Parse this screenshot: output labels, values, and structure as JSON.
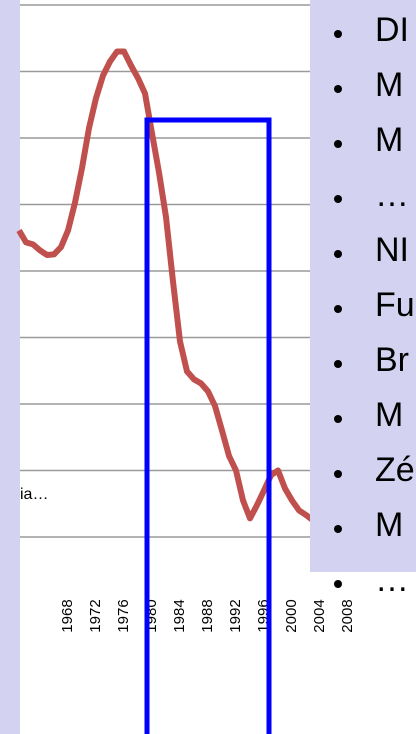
{
  "chart_data": {
    "type": "line",
    "x": [
      1961,
      1962,
      1963,
      1964,
      1965,
      1966,
      1967,
      1968,
      1969,
      1970,
      1971,
      1972,
      1973,
      1974,
      1975,
      1976,
      1977,
      1978,
      1979,
      1980,
      1981,
      1982,
      1983,
      1984,
      1985,
      1986,
      1987,
      1988,
      1989,
      1990,
      1991,
      1992,
      1993,
      1994,
      1995,
      1996,
      1997,
      1998,
      1999,
      2000,
      2001,
      2002,
      2003
    ],
    "series": [
      {
        "name": "ia…",
        "color": "#c0504d",
        "values": [
          4.61,
          4.43,
          4.4,
          4.31,
          4.24,
          4.25,
          4.36,
          4.61,
          5.03,
          5.55,
          6.15,
          6.6,
          6.94,
          7.15,
          7.3,
          7.3,
          7.09,
          6.9,
          6.67,
          6.07,
          5.48,
          4.81,
          3.84,
          2.94,
          2.49,
          2.37,
          2.31,
          2.19,
          1.97,
          1.6,
          1.22,
          1.0,
          0.55,
          0.28,
          0.48,
          0.7,
          0.93,
          1.0,
          0.73,
          0.55,
          0.4,
          0.33,
          0.25
        ]
      }
    ],
    "xlim": [
      1961.14,
      2012
    ],
    "xticks": [
      1968,
      1972,
      1976,
      1980,
      1984,
      1988,
      1992,
      1996,
      2000,
      2004,
      2008
    ],
    "ylim": [
      0,
      8
    ],
    "yticks": [
      0,
      1,
      2,
      3,
      4,
      5,
      6,
      7,
      8
    ],
    "grid": true
  },
  "panel": {
    "bullets": [
      "DI",
      "M",
      "M",
      "…",
      "NI",
      "Fu",
      "Br",
      "M",
      "Zé",
      "M",
      "…"
    ]
  }
}
